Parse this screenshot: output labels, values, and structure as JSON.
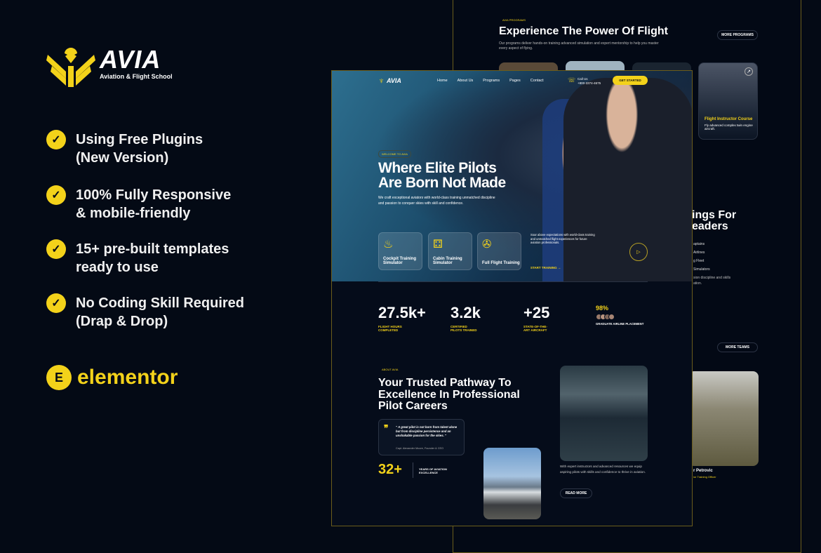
{
  "brand": {
    "name": "AVIA",
    "tagline": "Aviation & Flight School",
    "accent": "#f3d21a",
    "background": "#040a15"
  },
  "features": [
    {
      "icon": "check-icon",
      "text": "Using Free Plugins\n(New Version)"
    },
    {
      "icon": "check-icon",
      "text": "100% Fully Responsive\n& mobile-friendly"
    },
    {
      "icon": "check-icon",
      "text": "15+ pre-built templates\nready to use"
    },
    {
      "icon": "check-icon",
      "text": "No Coding Skill Required\n(Drap & Drop)"
    }
  ],
  "builder": {
    "icon": "elementor-icon",
    "name": "elementor"
  },
  "back": {
    "programs": {
      "eyebrow": "AVIA PROGRAMS",
      "title": "Experience The Power Of Flight",
      "desc": "Our programs deliver hands-on training advanced simulation and expert mentorship to help you master every aspect of flying.",
      "more": "MORE PROGRAMS",
      "card": {
        "title": "Flight Instructor Course",
        "desc": "Fly advanced complex twin engine aircraft."
      }
    },
    "partial_title": [
      "ings For",
      "eaders"
    ],
    "partial_list": [
      "aptains",
      "Airlines",
      "g Fleet",
      "Simulators"
    ],
    "partial_desc": "sion discipline and skills\nation.",
    "more_teams": "MORE TEAMS",
    "member": {
      "name": "r Petrovic",
      "role": "ior Training Officer"
    }
  },
  "front": {
    "nav": {
      "items": [
        "Home",
        "About Us",
        "Programs",
        "Pages",
        "Contact"
      ],
      "active": "Home",
      "call_label": "Call Us",
      "phone": "+800-3374-4675",
      "cta": "GET STARTED"
    },
    "hero": {
      "badge": "WELCOME TO AVIA",
      "title_1": "Where Elite Pilots",
      "title_2": "Are Born Not Made",
      "desc": "We craft exceptional aviators with world-class training unmatched discipline and passion to conquer skies with skill and confidence.",
      "services": [
        {
          "icon": "cockpit-icon",
          "label": "Cockpit Training Simulator"
        },
        {
          "icon": "seats-icon",
          "label": "Cabin Training Simulator"
        },
        {
          "icon": "gear-plane-icon",
          "label": "Full Flight Training"
        }
      ],
      "side_text": "Soar above expectations with world-class training and unmatched flight experiences for future aviation professionals.",
      "start": "START TRAINING →"
    },
    "stats": [
      {
        "value": "27.5k+",
        "label": "FLIGHT HOURS COMPLETED"
      },
      {
        "value": "3.2k",
        "label": "CERTIFIED PILOTS TRAINED"
      },
      {
        "value": "+25",
        "label": "STATE-OF-THE-ART AIRCRAFT"
      }
    ],
    "placement": {
      "value": "98%",
      "label": "GRADUATE AIRLINE PLACEMENT"
    },
    "about": {
      "eyebrow": "ABOUT AVIA",
      "title": "Your Trusted Pathway To Excellence In Professional Pilot Careers",
      "quote": "\" A great pilot is not born from talent alone but from discipline persistence and an unshakable passion for the skies. \"",
      "author": "Capt. Alexander Moore, Founder & CEO",
      "years": "32+",
      "years_label": "YEARS OF AVIATION EXCELLENCE",
      "desc": "With expert instructors and advanced resources we equip aspiring pilots with skills and confidence to thrive in aviation.",
      "read_more": "READ MORE"
    }
  }
}
